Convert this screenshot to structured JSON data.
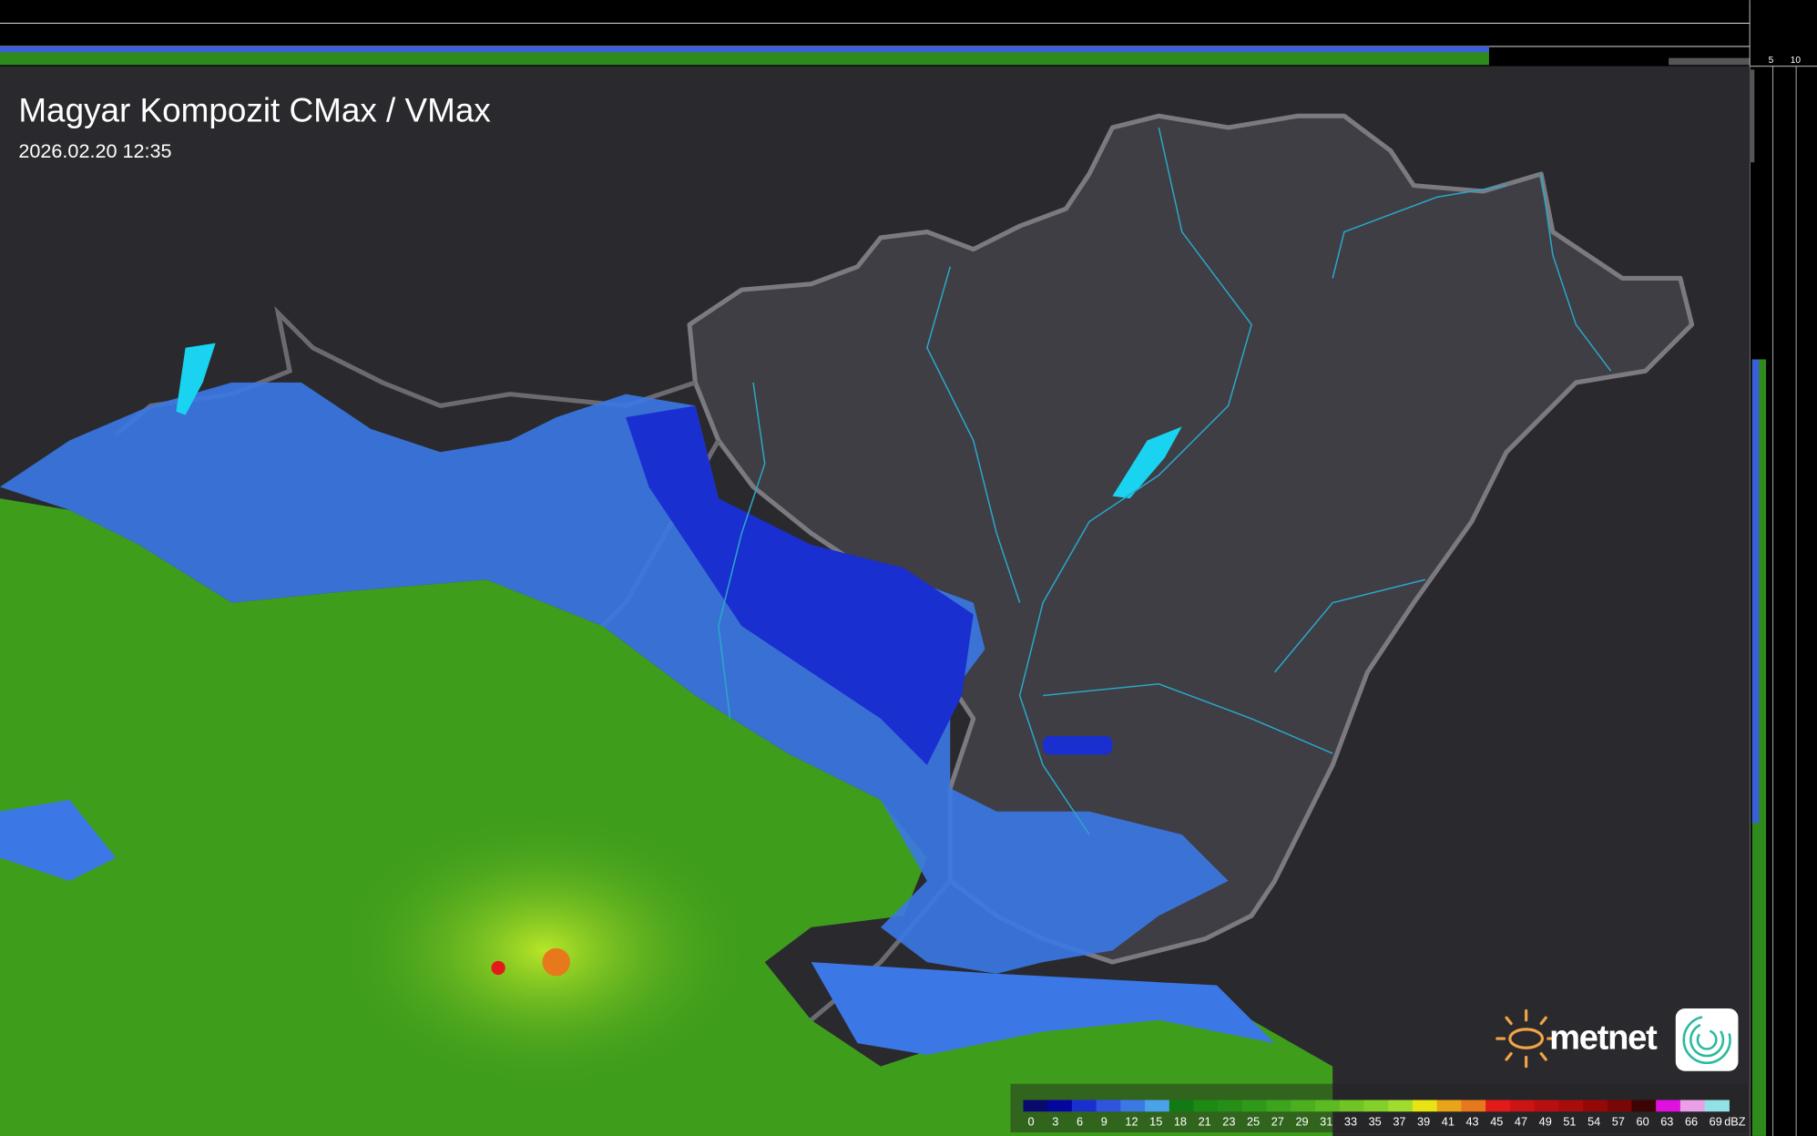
{
  "header": {
    "title": "Magyar Kompozit CMax / VMax",
    "timestamp": "2026.02.20 12:35"
  },
  "profile_axes": {
    "top_ticks": [
      "10",
      "5"
    ],
    "right_ticks": [
      "5",
      "10"
    ]
  },
  "logo": {
    "text": "metnet",
    "sun_color": "#f0a445",
    "icon": "spiral-logo-icon"
  },
  "legend": {
    "unit": "dBZ",
    "labels": [
      "0",
      "3",
      "6",
      "9",
      "12",
      "15",
      "18",
      "21",
      "23",
      "25",
      "27",
      "29",
      "31",
      "33",
      "35",
      "37",
      "39",
      "41",
      "43",
      "45",
      "47",
      "49",
      "51",
      "54",
      "57",
      "60",
      "63",
      "66",
      "69"
    ],
    "colors": [
      "#0a0a6e",
      "#0505a0",
      "#1a2fd0",
      "#2f55e0",
      "#3b78e6",
      "#4aa3ea",
      "#127a12",
      "#1d8a14",
      "#268f17",
      "#2f9a1a",
      "#3da51d",
      "#4caf20",
      "#5cba22",
      "#70c525",
      "#84d02a",
      "#a0dc2e",
      "#e8e414",
      "#eaa41a",
      "#e8781c",
      "#e41a1a",
      "#cc1414",
      "#b81010",
      "#a80c0c",
      "#960808",
      "#7a0606",
      "#3c0404",
      "#e010e0",
      "#eaa0e6",
      "#90e2e6"
    ]
  },
  "colors": {
    "background": "#2a2a2e",
    "country_fill": "#3e3e44",
    "border": "#7a7a80",
    "river": "#2aa7c8",
    "lake": "#19d3f0"
  }
}
